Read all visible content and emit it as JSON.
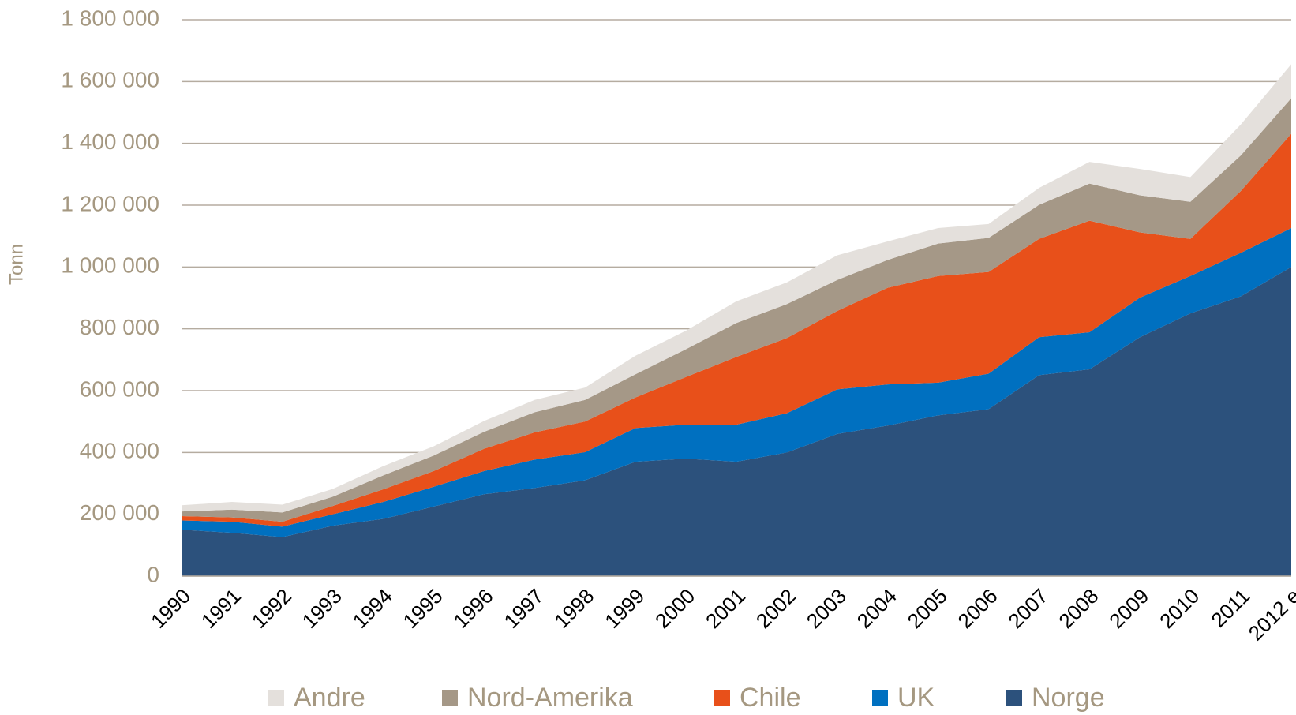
{
  "chart_data": {
    "type": "area",
    "stacked": true,
    "y_label": "Tonn",
    "categories": [
      "1990",
      "1991",
      "1992",
      "1993",
      "1994",
      "1995",
      "1996",
      "1997",
      "1998",
      "1999",
      "2000",
      "2001",
      "2002",
      "2003",
      "2004",
      "2005",
      "2006",
      "2007",
      "2008",
      "2009",
      "2010",
      "2011",
      "2012 e"
    ],
    "series": [
      {
        "name": "Norge",
        "color": "#2c517c",
        "values": [
          150000,
          140000,
          126000,
          163000,
          185000,
          225000,
          265000,
          285000,
          310000,
          370000,
          380000,
          370000,
          400000,
          460000,
          487000,
          520000,
          540000,
          650000,
          669000,
          773000,
          850000,
          905000,
          1000000
        ]
      },
      {
        "name": "UK",
        "color": "#0070c0",
        "values": [
          30000,
          36000,
          34000,
          37000,
          55000,
          64000,
          75000,
          92000,
          91000,
          109000,
          110000,
          120000,
          127000,
          144000,
          133000,
          106000,
          115000,
          123000,
          120000,
          128000,
          121000,
          141000,
          126000
        ]
      },
      {
        "name": "Chile",
        "color": "#e8501a",
        "values": [
          14000,
          14000,
          16000,
          27000,
          41000,
          51000,
          72000,
          88000,
          99000,
          99000,
          154000,
          219000,
          243000,
          254000,
          313000,
          345000,
          329000,
          318000,
          361000,
          211000,
          120000,
          200000,
          305000
        ]
      },
      {
        "name": "Nord-Amerika",
        "color": "#a59887",
        "values": [
          15000,
          25000,
          30000,
          30000,
          45000,
          50000,
          55000,
          65000,
          70000,
          75000,
          90000,
          110000,
          110000,
          100000,
          90000,
          105000,
          110000,
          110000,
          120000,
          120000,
          120000,
          115000,
          115000
        ]
      },
      {
        "name": "Andre",
        "color": "#e4e0dc",
        "values": [
          20000,
          25000,
          25000,
          25000,
          30000,
          30000,
          35000,
          40000,
          40000,
          60000,
          60000,
          70000,
          70000,
          80000,
          60000,
          50000,
          45000,
          55000,
          70000,
          85000,
          80000,
          100000,
          110000
        ]
      }
    ],
    "ylim": [
      0,
      1800000
    ],
    "yticks": [
      0,
      {
        "value": 200000,
        "label": "200 000"
      },
      {
        "value": 400000,
        "label": "400 000"
      },
      {
        "value": 600000,
        "label": "600 000"
      },
      {
        "value": 800000,
        "label": "800 000"
      },
      {
        "value": 1000000,
        "label": "1 000 000"
      },
      {
        "value": 1200000,
        "label": "1 200 000"
      },
      {
        "value": 1400000,
        "label": "1 400 000"
      },
      {
        "value": 1600000,
        "label": "1 600 000"
      },
      {
        "value": 1800000,
        "label": "1 800 000"
      }
    ],
    "grid": true,
    "legend": "bottom"
  }
}
